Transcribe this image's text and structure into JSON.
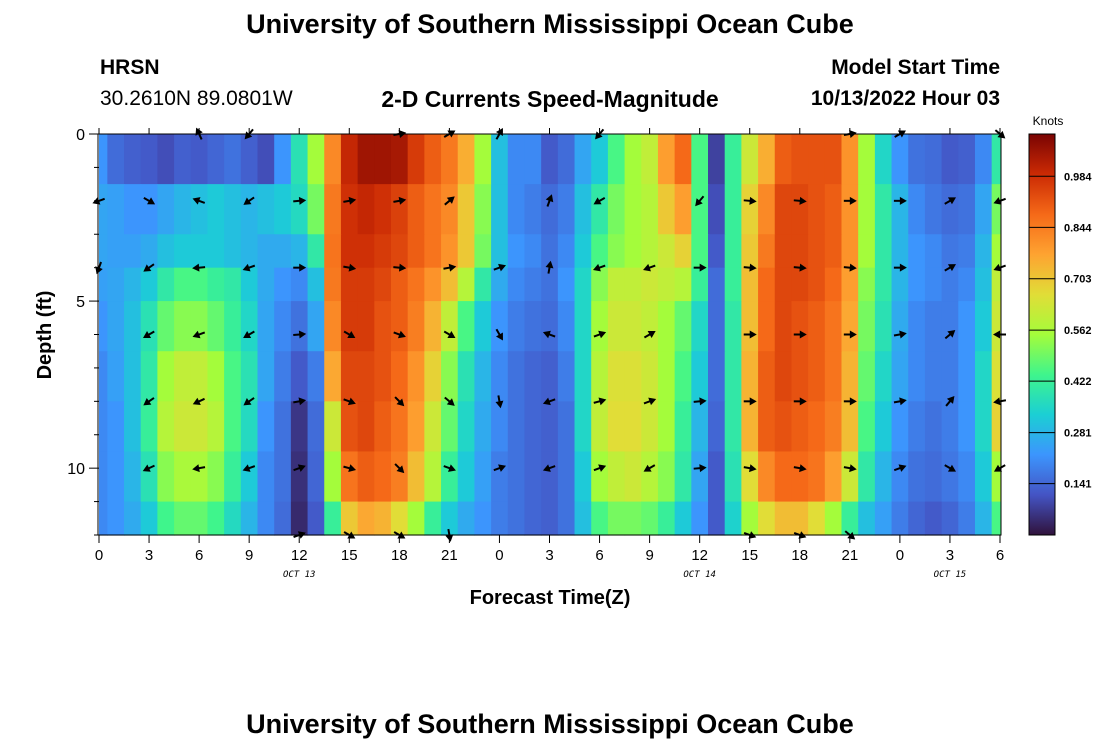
{
  "page": {
    "title_top": "University of Southern Mississippi Ocean Cube",
    "title_bottom": "University of Southern Mississippi Ocean Cube"
  },
  "station": {
    "name": "HRSN",
    "coords": "30.2610N  89.0801W"
  },
  "model": {
    "label": "Model Start Time",
    "time": "10/13/2022 Hour 03"
  },
  "colors": {
    "arrow": "#000000",
    "axis": "#000000"
  },
  "chart_data": {
    "type": "heatmap",
    "title": "2-D Currents Speed-Magnitude",
    "xlabel": "Forecast Time(Z)",
    "ylabel": "Depth (ft)",
    "x_range_hours": [
      0,
      54
    ],
    "y_range_ft": [
      0,
      12
    ],
    "y_reversed": true,
    "x_tick_labels": [
      "0",
      "3",
      "6",
      "9",
      "12",
      "15",
      "18",
      "21",
      "0",
      "3",
      "6",
      "9",
      "12",
      "15",
      "18",
      "21",
      "0",
      "3",
      "6"
    ],
    "y_tick_labels": [
      "0",
      "5",
      "10"
    ],
    "y_tick_values": [
      0,
      5,
      10
    ],
    "date_labels": [
      {
        "label": "OCT 13",
        "hour": 12
      },
      {
        "label": "OCT 14",
        "hour": 36
      },
      {
        "label": "OCT 15",
        "hour": 51
      }
    ],
    "colorbar": {
      "label": "Knots",
      "tick_labels": [
        "0.984",
        "0.844",
        "0.703",
        "0.562",
        "0.422",
        "0.281",
        "0.141"
      ],
      "tick_values": [
        0.984,
        0.844,
        0.703,
        0.562,
        0.422,
        0.281,
        0.141
      ],
      "range": [
        0,
        1.1
      ],
      "palette": [
        "#30123b",
        "#4454c4",
        "#3c95fd",
        "#1bcfd4",
        "#3ff58c",
        "#a4fc3b",
        "#e1dd37",
        "#fea331",
        "#f56918",
        "#cb2a04",
        "#7a0403"
      ]
    },
    "grid_x_hours": [
      0,
      1,
      2,
      3,
      4,
      5,
      6,
      7,
      8,
      9,
      10,
      11,
      12,
      13,
      14,
      15,
      16,
      17,
      18,
      19,
      20,
      21,
      22,
      23,
      24,
      25,
      26,
      27,
      28,
      29,
      30,
      31,
      32,
      33,
      34,
      35,
      36,
      37,
      38,
      39,
      40,
      41,
      42,
      43,
      44,
      45,
      46,
      47,
      48,
      49,
      50,
      51,
      52,
      53,
      54
    ],
    "grid_depth_ft": [
      0,
      1.5,
      2.25,
      3.75,
      4.5,
      6,
      7.5,
      9,
      10.5,
      12
    ],
    "grid_depth_edges_ft": [
      0,
      1.5,
      3,
      4,
      5,
      6.5,
      8,
      9.5,
      11,
      12
    ],
    "speed_knots": [
      [
        0.22,
        0.15,
        0.13,
        0.12,
        0.1,
        0.13,
        0.12,
        0.14,
        0.16,
        0.13,
        0.1,
        0.22,
        0.38,
        0.55,
        0.82,
        1.0,
        1.05,
        1.05,
        1.04,
        0.96,
        0.9,
        0.85,
        0.75,
        0.55,
        0.3,
        0.2,
        0.2,
        0.12,
        0.15,
        0.25,
        0.32,
        0.45,
        0.55,
        0.6,
        0.78,
        0.88,
        0.45,
        0.08,
        0.42,
        0.62,
        0.75,
        0.9,
        0.92,
        0.92,
        0.92,
        0.8,
        0.55,
        0.35,
        0.22,
        0.16,
        0.15,
        0.12,
        0.13,
        0.2,
        0.4
      ],
      [
        0.25,
        0.24,
        0.22,
        0.22,
        0.25,
        0.28,
        0.3,
        0.32,
        0.3,
        0.28,
        0.3,
        0.32,
        0.36,
        0.5,
        0.85,
        0.98,
        1.0,
        0.98,
        0.95,
        0.9,
        0.86,
        0.82,
        0.7,
        0.52,
        0.3,
        0.2,
        0.18,
        0.15,
        0.18,
        0.3,
        0.4,
        0.5,
        0.55,
        0.58,
        0.7,
        0.78,
        0.45,
        0.1,
        0.42,
        0.68,
        0.82,
        0.94,
        0.94,
        0.92,
        0.9,
        0.8,
        0.55,
        0.4,
        0.28,
        0.2,
        0.17,
        0.15,
        0.16,
        0.25,
        0.5
      ],
      [
        0.25,
        0.24,
        0.24,
        0.26,
        0.3,
        0.32,
        0.32,
        0.32,
        0.3,
        0.28,
        0.26,
        0.26,
        0.28,
        0.4,
        0.86,
        0.98,
        0.98,
        0.96,
        0.94,
        0.9,
        0.86,
        0.8,
        0.7,
        0.5,
        0.3,
        0.22,
        0.2,
        0.16,
        0.2,
        0.32,
        0.45,
        0.52,
        0.55,
        0.58,
        0.62,
        0.68,
        0.45,
        0.12,
        0.42,
        0.7,
        0.85,
        0.94,
        0.94,
        0.92,
        0.9,
        0.8,
        0.55,
        0.4,
        0.28,
        0.22,
        0.2,
        0.17,
        0.18,
        0.28,
        0.55
      ],
      [
        0.24,
        0.25,
        0.28,
        0.32,
        0.4,
        0.45,
        0.45,
        0.42,
        0.4,
        0.32,
        0.26,
        0.22,
        0.2,
        0.3,
        0.85,
        0.96,
        0.96,
        0.94,
        0.9,
        0.86,
        0.8,
        0.72,
        0.58,
        0.4,
        0.26,
        0.2,
        0.18,
        0.16,
        0.22,
        0.35,
        0.52,
        0.6,
        0.6,
        0.62,
        0.6,
        0.58,
        0.42,
        0.15,
        0.42,
        0.72,
        0.88,
        0.94,
        0.94,
        0.92,
        0.88,
        0.78,
        0.52,
        0.4,
        0.28,
        0.22,
        0.2,
        0.18,
        0.2,
        0.3,
        0.6
      ],
      [
        0.22,
        0.25,
        0.3,
        0.38,
        0.48,
        0.52,
        0.52,
        0.48,
        0.42,
        0.35,
        0.25,
        0.2,
        0.16,
        0.25,
        0.82,
        0.96,
        0.96,
        0.92,
        0.9,
        0.84,
        0.74,
        0.6,
        0.45,
        0.32,
        0.22,
        0.18,
        0.16,
        0.15,
        0.2,
        0.35,
        0.55,
        0.62,
        0.62,
        0.6,
        0.55,
        0.48,
        0.35,
        0.15,
        0.4,
        0.72,
        0.88,
        0.94,
        0.92,
        0.9,
        0.86,
        0.76,
        0.5,
        0.38,
        0.26,
        0.2,
        0.18,
        0.18,
        0.22,
        0.32,
        0.62
      ],
      [
        0.2,
        0.24,
        0.3,
        0.4,
        0.55,
        0.6,
        0.6,
        0.55,
        0.45,
        0.38,
        0.25,
        0.18,
        0.12,
        0.18,
        0.76,
        0.94,
        0.94,
        0.92,
        0.88,
        0.8,
        0.68,
        0.52,
        0.38,
        0.28,
        0.2,
        0.16,
        0.14,
        0.13,
        0.18,
        0.35,
        0.58,
        0.65,
        0.65,
        0.62,
        0.55,
        0.45,
        0.32,
        0.15,
        0.4,
        0.74,
        0.9,
        0.94,
        0.92,
        0.9,
        0.86,
        0.74,
        0.48,
        0.35,
        0.25,
        0.2,
        0.18,
        0.18,
        0.22,
        0.35,
        0.65
      ],
      [
        0.2,
        0.22,
        0.3,
        0.42,
        0.58,
        0.62,
        0.62,
        0.58,
        0.45,
        0.36,
        0.22,
        0.16,
        0.06,
        0.15,
        0.62,
        0.92,
        0.94,
        0.9,
        0.86,
        0.78,
        0.62,
        0.48,
        0.35,
        0.26,
        0.2,
        0.16,
        0.14,
        0.13,
        0.16,
        0.35,
        0.6,
        0.66,
        0.66,
        0.62,
        0.55,
        0.42,
        0.28,
        0.14,
        0.4,
        0.74,
        0.9,
        0.92,
        0.9,
        0.88,
        0.84,
        0.72,
        0.45,
        0.32,
        0.22,
        0.18,
        0.16,
        0.18,
        0.22,
        0.35,
        0.68
      ],
      [
        0.2,
        0.22,
        0.28,
        0.38,
        0.52,
        0.56,
        0.56,
        0.52,
        0.42,
        0.32,
        0.2,
        0.16,
        0.05,
        0.14,
        0.55,
        0.86,
        0.9,
        0.88,
        0.84,
        0.72,
        0.58,
        0.42,
        0.32,
        0.24,
        0.18,
        0.16,
        0.14,
        0.13,
        0.16,
        0.32,
        0.55,
        0.6,
        0.62,
        0.58,
        0.52,
        0.4,
        0.25,
        0.12,
        0.38,
        0.66,
        0.82,
        0.88,
        0.88,
        0.86,
        0.78,
        0.62,
        0.4,
        0.28,
        0.2,
        0.16,
        0.15,
        0.17,
        0.2,
        0.32,
        0.55
      ],
      [
        0.2,
        0.22,
        0.26,
        0.32,
        0.44,
        0.48,
        0.48,
        0.44,
        0.36,
        0.28,
        0.2,
        0.15,
        0.04,
        0.12,
        0.42,
        0.7,
        0.76,
        0.74,
        0.66,
        0.55,
        0.42,
        0.32,
        0.26,
        0.22,
        0.18,
        0.16,
        0.14,
        0.13,
        0.16,
        0.3,
        0.45,
        0.5,
        0.5,
        0.48,
        0.42,
        0.32,
        0.22,
        0.12,
        0.34,
        0.55,
        0.66,
        0.72,
        0.72,
        0.66,
        0.55,
        0.42,
        0.3,
        0.24,
        0.18,
        0.14,
        0.12,
        0.14,
        0.18,
        0.28,
        0.45
      ],
      [
        0.22,
        0.22,
        0.24,
        0.28,
        0.35,
        0.4,
        0.4,
        0.36,
        0.3,
        0.25,
        0.2,
        0.15,
        0.02,
        0.12,
        0.32,
        0.48,
        0.56,
        0.56,
        0.5,
        0.4,
        0.32,
        0.28,
        0.24,
        0.22,
        0.2,
        0.18,
        0.16,
        0.15,
        0.16,
        0.25,
        0.32,
        0.36,
        0.38,
        0.36,
        0.32,
        0.26,
        0.2,
        0.14,
        0.26,
        0.36,
        0.42,
        0.46,
        0.46,
        0.42,
        0.36,
        0.3,
        0.24,
        0.2,
        0.08,
        0.08,
        0.1,
        0.16,
        0.2,
        0.25,
        0.35
      ]
    ],
    "vectors": [
      {
        "hour": 0,
        "depth": 2,
        "angle": 200
      },
      {
        "hour": 0,
        "depth": 4,
        "angle": 250
      },
      {
        "hour": 3,
        "depth": 2,
        "angle": 330
      },
      {
        "hour": 3,
        "depth": 4,
        "angle": 215
      },
      {
        "hour": 3,
        "depth": 6,
        "angle": 210
      },
      {
        "hour": 3,
        "depth": 8,
        "angle": 215
      },
      {
        "hour": 3,
        "depth": 10,
        "angle": 205
      },
      {
        "hour": 6,
        "depth": 0,
        "angle": 115
      },
      {
        "hour": 6,
        "depth": 2,
        "angle": 160
      },
      {
        "hour": 6,
        "depth": 4,
        "angle": 185
      },
      {
        "hour": 6,
        "depth": 6,
        "angle": 200
      },
      {
        "hour": 6,
        "depth": 8,
        "angle": 205
      },
      {
        "hour": 6,
        "depth": 10,
        "angle": 190
      },
      {
        "hour": 9,
        "depth": 0,
        "angle": 230
      },
      {
        "hour": 9,
        "depth": 2,
        "angle": 215
      },
      {
        "hour": 9,
        "depth": 4,
        "angle": 200
      },
      {
        "hour": 9,
        "depth": 6,
        "angle": 210
      },
      {
        "hour": 9,
        "depth": 8,
        "angle": 215
      },
      {
        "hour": 9,
        "depth": 10,
        "angle": 200
      },
      {
        "hour": 12,
        "depth": 2,
        "angle": 5
      },
      {
        "hour": 12,
        "depth": 4,
        "angle": 0
      },
      {
        "hour": 12,
        "depth": 6,
        "angle": 5
      },
      {
        "hour": 12,
        "depth": 8,
        "angle": 10
      },
      {
        "hour": 12,
        "depth": 10,
        "angle": 20
      },
      {
        "hour": 12,
        "depth": 12,
        "angle": 20
      },
      {
        "hour": 15,
        "depth": 2,
        "angle": 10
      },
      {
        "hour": 15,
        "depth": 4,
        "angle": 350
      },
      {
        "hour": 15,
        "depth": 6,
        "angle": 330
      },
      {
        "hour": 15,
        "depth": 8,
        "angle": 340
      },
      {
        "hour": 15,
        "depth": 10,
        "angle": 345
      },
      {
        "hour": 15,
        "depth": 12,
        "angle": 330
      },
      {
        "hour": 18,
        "depth": 0,
        "angle": 10
      },
      {
        "hour": 18,
        "depth": 2,
        "angle": 10
      },
      {
        "hour": 18,
        "depth": 4,
        "angle": 355
      },
      {
        "hour": 18,
        "depth": 6,
        "angle": 340
      },
      {
        "hour": 18,
        "depth": 8,
        "angle": 315
      },
      {
        "hour": 18,
        "depth": 10,
        "angle": 315
      },
      {
        "hour": 18,
        "depth": 12,
        "angle": 330
      },
      {
        "hour": 21,
        "depth": 0,
        "angle": 30
      },
      {
        "hour": 21,
        "depth": 2,
        "angle": 40
      },
      {
        "hour": 21,
        "depth": 4,
        "angle": 10
      },
      {
        "hour": 21,
        "depth": 6,
        "angle": 330
      },
      {
        "hour": 21,
        "depth": 8,
        "angle": 320
      },
      {
        "hour": 21,
        "depth": 10,
        "angle": 340
      },
      {
        "hour": 21,
        "depth": 12,
        "angle": 280
      },
      {
        "hour": 24,
        "depth": 0,
        "angle": 60
      },
      {
        "hour": 24,
        "depth": 4,
        "angle": 20
      },
      {
        "hour": 24,
        "depth": 6,
        "angle": 300
      },
      {
        "hour": 24,
        "depth": 8,
        "angle": 280
      },
      {
        "hour": 24,
        "depth": 10,
        "angle": 20
      },
      {
        "hour": 27,
        "depth": 2,
        "angle": 70
      },
      {
        "hour": 27,
        "depth": 4,
        "angle": 80
      },
      {
        "hour": 27,
        "depth": 6,
        "angle": 160
      },
      {
        "hour": 27,
        "depth": 8,
        "angle": 200
      },
      {
        "hour": 27,
        "depth": 10,
        "angle": 200
      },
      {
        "hour": 30,
        "depth": 0,
        "angle": 230
      },
      {
        "hour": 30,
        "depth": 2,
        "angle": 210
      },
      {
        "hour": 30,
        "depth": 4,
        "angle": 200
      },
      {
        "hour": 30,
        "depth": 6,
        "angle": 20
      },
      {
        "hour": 30,
        "depth": 8,
        "angle": 15
      },
      {
        "hour": 30,
        "depth": 10,
        "angle": 20
      },
      {
        "hour": 33,
        "depth": 4,
        "angle": 200
      },
      {
        "hour": 33,
        "depth": 6,
        "angle": 30
      },
      {
        "hour": 33,
        "depth": 8,
        "angle": 20
      },
      {
        "hour": 33,
        "depth": 10,
        "angle": 210
      },
      {
        "hour": 36,
        "depth": 2,
        "angle": 230
      },
      {
        "hour": 36,
        "depth": 4,
        "angle": 0
      },
      {
        "hour": 36,
        "depth": 8,
        "angle": 5
      },
      {
        "hour": 36,
        "depth": 10,
        "angle": 5
      },
      {
        "hour": 39,
        "depth": 2,
        "angle": 355
      },
      {
        "hour": 39,
        "depth": 4,
        "angle": 355
      },
      {
        "hour": 39,
        "depth": 6,
        "angle": 0
      },
      {
        "hour": 39,
        "depth": 8,
        "angle": 0
      },
      {
        "hour": 39,
        "depth": 10,
        "angle": 350
      },
      {
        "hour": 39,
        "depth": 12,
        "angle": 340
      },
      {
        "hour": 42,
        "depth": 2,
        "angle": 355
      },
      {
        "hour": 42,
        "depth": 4,
        "angle": 355
      },
      {
        "hour": 42,
        "depth": 6,
        "angle": 0
      },
      {
        "hour": 42,
        "depth": 8,
        "angle": 0
      },
      {
        "hour": 42,
        "depth": 10,
        "angle": 350
      },
      {
        "hour": 42,
        "depth": 12,
        "angle": 340
      },
      {
        "hour": 45,
        "depth": 0,
        "angle": 10
      },
      {
        "hour": 45,
        "depth": 2,
        "angle": 0
      },
      {
        "hour": 45,
        "depth": 4,
        "angle": 355
      },
      {
        "hour": 45,
        "depth": 6,
        "angle": 0
      },
      {
        "hour": 45,
        "depth": 8,
        "angle": 0
      },
      {
        "hour": 45,
        "depth": 10,
        "angle": 350
      },
      {
        "hour": 45,
        "depth": 12,
        "angle": 320
      },
      {
        "hour": 48,
        "depth": 0,
        "angle": 30
      },
      {
        "hour": 48,
        "depth": 2,
        "angle": 0
      },
      {
        "hour": 48,
        "depth": 4,
        "angle": 0
      },
      {
        "hour": 48,
        "depth": 6,
        "angle": 10
      },
      {
        "hour": 48,
        "depth": 8,
        "angle": 10
      },
      {
        "hour": 48,
        "depth": 10,
        "angle": 20
      },
      {
        "hour": 51,
        "depth": 2,
        "angle": 30
      },
      {
        "hour": 51,
        "depth": 4,
        "angle": 30
      },
      {
        "hour": 51,
        "depth": 6,
        "angle": 40
      },
      {
        "hour": 51,
        "depth": 8,
        "angle": 50
      },
      {
        "hour": 51,
        "depth": 10,
        "angle": 330
      },
      {
        "hour": 54,
        "depth": 0,
        "angle": 320
      },
      {
        "hour": 54,
        "depth": 2,
        "angle": 200
      },
      {
        "hour": 54,
        "depth": 4,
        "angle": 200
      },
      {
        "hour": 54,
        "depth": 6,
        "angle": 180
      },
      {
        "hour": 54,
        "depth": 8,
        "angle": 190
      },
      {
        "hour": 54,
        "depth": 10,
        "angle": 210
      }
    ]
  }
}
